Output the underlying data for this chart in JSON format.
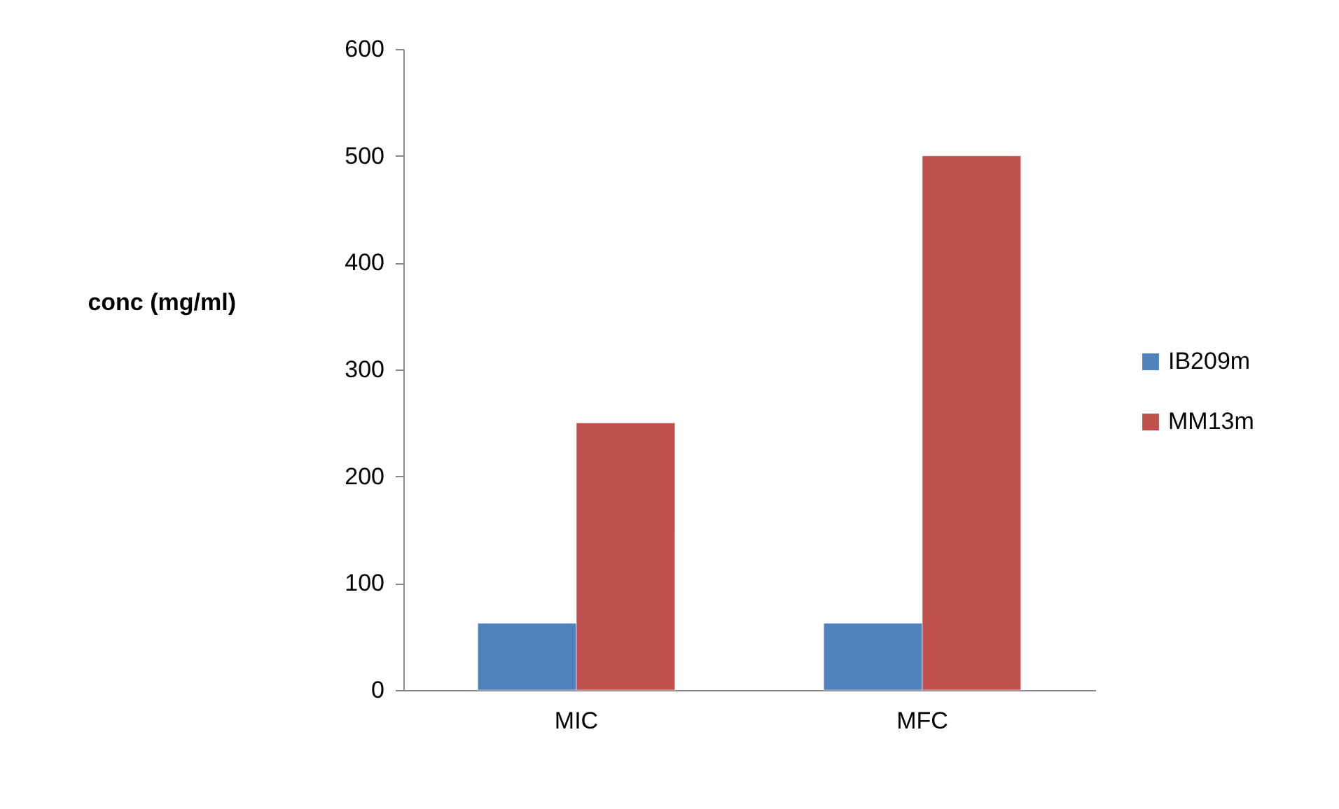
{
  "chart_data": {
    "type": "bar",
    "ylabel": "conc (mg/ml)",
    "categories": [
      "MIC",
      "MFC"
    ],
    "series": [
      {
        "name": "IB209m",
        "color": "#4f81bd",
        "values": [
          62.5,
          62.5
        ]
      },
      {
        "name": "MM13m",
        "color": "#c0504d",
        "values": [
          250,
          500
        ]
      }
    ],
    "ylim": [
      0,
      600
    ],
    "yticks": [
      0,
      100,
      200,
      300,
      400,
      500,
      600
    ],
    "grid": false,
    "legend": "right"
  }
}
